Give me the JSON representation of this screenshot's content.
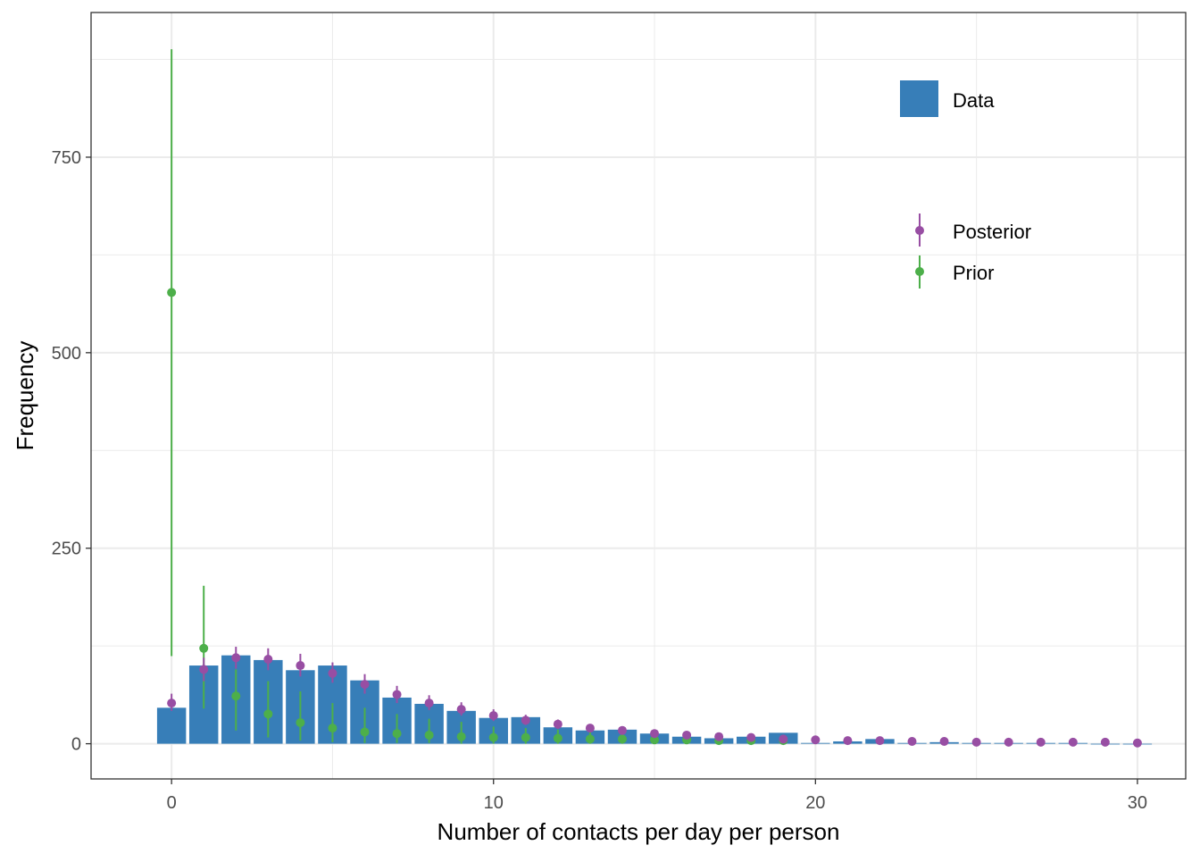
{
  "chart_data": {
    "type": "bar",
    "title": "",
    "xlabel": "Number of contacts per day per person",
    "ylabel": "Frequency",
    "xlim": [
      -2.5,
      31.5
    ],
    "ylim": [
      -45,
      935
    ],
    "x_ticks": [
      0,
      10,
      20,
      30
    ],
    "y_ticks": [
      0,
      250,
      500,
      750
    ],
    "x_tick_labels": [
      "0",
      "10",
      "20",
      "30"
    ],
    "y_tick_labels": [
      "0",
      "250",
      "500",
      "750"
    ],
    "grid": true,
    "legend_position": "top-right",
    "colors": {
      "data": "#377eb8",
      "posterior": "#984ea3",
      "prior": "#4daf4a",
      "grid": "#ebebeb",
      "border": "#333333"
    },
    "legend": [
      {
        "key": "data",
        "label": "Data",
        "kind": "bar"
      },
      {
        "key": "posterior",
        "label": "Posterior",
        "kind": "pointrange"
      },
      {
        "key": "prior",
        "label": "Prior",
        "kind": "pointrange"
      }
    ],
    "data_bars": {
      "name": "Data",
      "x": [
        0,
        1,
        2,
        3,
        4,
        5,
        6,
        7,
        8,
        9,
        10,
        11,
        12,
        13,
        14,
        15,
        16,
        17,
        18,
        19,
        20,
        21,
        22,
        23,
        24,
        25,
        26,
        27,
        28,
        29,
        30
      ],
      "values": [
        46,
        100,
        113,
        107,
        94,
        100,
        81,
        59,
        51,
        42,
        33,
        34,
        21,
        17,
        18,
        13,
        9,
        7,
        9,
        14,
        1,
        3,
        6,
        1,
        2,
        1,
        1,
        1,
        1,
        0,
        0
      ]
    },
    "posterior": {
      "name": "Posterior",
      "x": [
        0,
        1,
        2,
        3,
        4,
        5,
        6,
        7,
        8,
        9,
        10,
        11,
        12,
        13,
        14,
        15,
        16,
        17,
        18,
        19,
        20,
        21,
        22,
        23,
        24,
        25,
        26,
        27,
        28,
        29,
        30
      ],
      "values": [
        52,
        95,
        110,
        108,
        100,
        90,
        76,
        63,
        52,
        44,
        36,
        30,
        25,
        20,
        17,
        13,
        11,
        9,
        8,
        6,
        5,
        4,
        4,
        3,
        3,
        2,
        2,
        2,
        2,
        2,
        1
      ],
      "lower": [
        42,
        80,
        96,
        94,
        86,
        78,
        64,
        52,
        43,
        36,
        29,
        24,
        19,
        15,
        12,
        9,
        7,
        6,
        5,
        4,
        3,
        2,
        2,
        1,
        1,
        1,
        1,
        1,
        1,
        1,
        0
      ],
      "upper": [
        64,
        110,
        124,
        122,
        115,
        104,
        89,
        74,
        62,
        53,
        44,
        37,
        31,
        25,
        21,
        17,
        14,
        12,
        10,
        9,
        7,
        6,
        6,
        5,
        4,
        4,
        3,
        3,
        3,
        3,
        2
      ]
    },
    "prior": {
      "name": "Prior",
      "x": [
        0,
        1,
        2,
        3,
        4,
        5,
        6,
        7,
        8,
        9,
        10,
        11,
        12,
        13,
        14,
        15,
        16,
        17,
        18,
        19
      ],
      "values": [
        577,
        122,
        61,
        38,
        27,
        20,
        15,
        13,
        11,
        9,
        8,
        8,
        7,
        6,
        6,
        5,
        5,
        4,
        4,
        4
      ],
      "lower": [
        112,
        45,
        17,
        8,
        4,
        2,
        1,
        1,
        1,
        0,
        0,
        0,
        0,
        0,
        0,
        0,
        0,
        0,
        0,
        0
      ],
      "upper": [
        888,
        202,
        95,
        80,
        67,
        52,
        46,
        38,
        32,
        28,
        22,
        20,
        18,
        15,
        12,
        10,
        9,
        8,
        8,
        8
      ]
    }
  }
}
